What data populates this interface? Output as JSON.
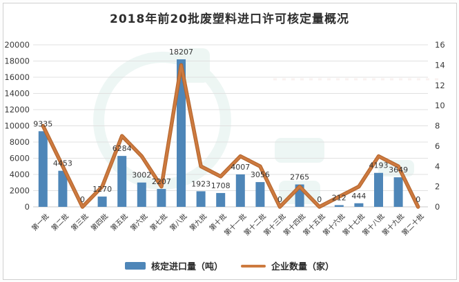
{
  "title": "2018年前20批废塑料进口许可核定量概况",
  "colors": {
    "bar": "#4e86b8",
    "line": "#cd7a3f",
    "line_shadow": "#b5662e",
    "grid": "#e0e0e0",
    "axis_text": "#3a3a3a",
    "data_label": "#353535",
    "watermark": "#d8ece6",
    "watermark_pink": "#eccfc6"
  },
  "chart_data": {
    "type": "bar",
    "subtype": "combo-bar-line",
    "title": "2018年前20批废塑料进口许可核定量概况",
    "categories": [
      "第一批",
      "第二批",
      "第三批",
      "第四批",
      "第五批",
      "第六批",
      "第七批",
      "第八批",
      "第九批",
      "第十批",
      "第十一批",
      "第十二批",
      "第十三批",
      "第十四批",
      "第十五批",
      "第十六批",
      "第十七批",
      "第十八批",
      "第十九批",
      "第二十批"
    ],
    "series": [
      {
        "name": "核定进口量（吨）",
        "type": "bar",
        "axis": "left",
        "color": "#4e86b8",
        "values": [
          9335,
          4453,
          0,
          1270,
          6284,
          3002,
          2207,
          18207,
          1923,
          1708,
          4007,
          3056,
          0,
          2765,
          0,
          212,
          444,
          4193,
          3649,
          0
        ]
      },
      {
        "name": "企业数量（家）",
        "type": "line",
        "axis": "right",
        "color": "#cd7a3f",
        "values": [
          8,
          4,
          0,
          2,
          7,
          5,
          2,
          14,
          4,
          3,
          5,
          4,
          0,
          2,
          0,
          1,
          2,
          5,
          4,
          0
        ]
      }
    ],
    "left_axis": {
      "min": 0,
      "max": 20000,
      "step": 2000,
      "ticks": [
        "0",
        "2000",
        "4000",
        "6000",
        "8000",
        "10000",
        "12000",
        "14000",
        "16000",
        "18000",
        "20000"
      ]
    },
    "right_axis": {
      "min": 0,
      "max": 16,
      "step": 2,
      "ticks": [
        "0",
        "2",
        "4",
        "6",
        "8",
        "10",
        "12",
        "14",
        "16"
      ]
    },
    "grid": true,
    "legend_position": "bottom",
    "data_labels_shown": true
  },
  "legend": {
    "items": [
      {
        "label": "核定进口量（吨）",
        "swatch": "bar-swatch"
      },
      {
        "label": "企业数量（家）",
        "swatch": "line-swatch"
      }
    ]
  }
}
